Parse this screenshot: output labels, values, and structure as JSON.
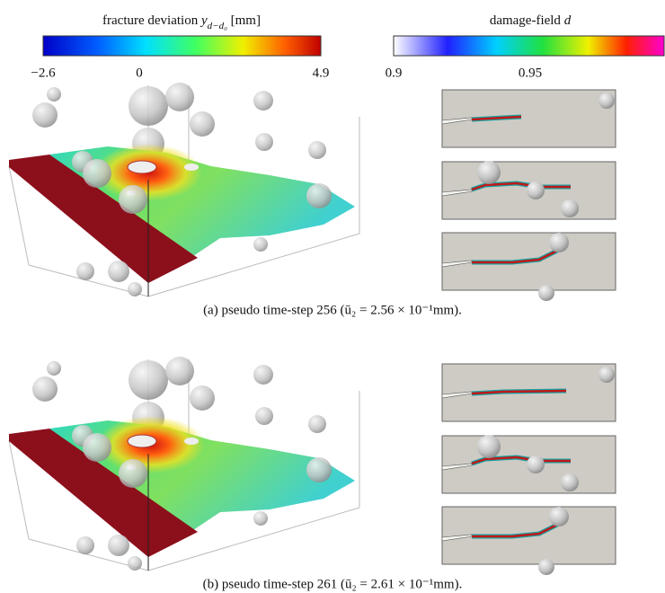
{
  "colorbars": [
    {
      "title": "fracture deviation",
      "symbol": "y",
      "subscript": "d−d₀",
      "unit": "[mm]",
      "ticks": [
        "−2.6",
        "0",
        "4.9"
      ]
    },
    {
      "title": "damage-field",
      "symbol": "d",
      "ticks": [
        "0.9",
        "0.95"
      ]
    }
  ],
  "panels": [
    {
      "caption": "(a) pseudo time-step 256 (ū₂ = 2.56 × 10⁻¹mm)."
    },
    {
      "caption": "(b) pseudo time-step 261 (ū₂ = 2.61 × 10⁻¹mm)."
    }
  ]
}
